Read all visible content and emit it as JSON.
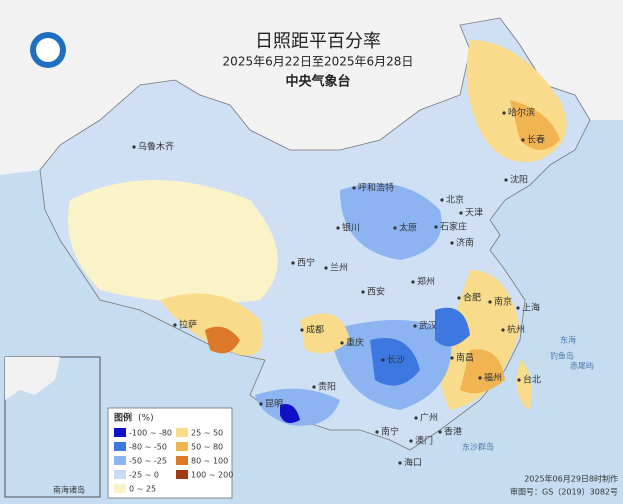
{
  "header": {
    "title": "日照距平百分率",
    "date_range": "2025年6月22日至2025年6月28日",
    "agency": "中央气象台"
  },
  "cities": [
    "乌鲁木齐",
    "哈尔滨",
    "长春",
    "沈阳",
    "呼和浩特",
    "北京",
    "天津",
    "银川",
    "太原",
    "石家庄",
    "济南",
    "西宁",
    "兰州",
    "郑州",
    "西安",
    "合肥",
    "南京",
    "上海",
    "拉萨",
    "成都",
    "武汉",
    "杭州",
    "重庆",
    "长沙",
    "南昌",
    "福州",
    "台北",
    "贵阳",
    "昆明",
    "南宁",
    "广州",
    "香港",
    "澳门",
    "海口"
  ],
  "sea_labels": [
    "东海",
    "钓鱼岛",
    "赤尾屿",
    "东沙群岛"
  ],
  "legend": {
    "title": "图例",
    "unit": "(%)",
    "items": [
      {
        "label": "-100 ~ -80",
        "color": "#1010c8"
      },
      {
        "label": "-80 ~ -50",
        "color": "#3c78e0"
      },
      {
        "label": "-50 ~ -25",
        "color": "#8cb4f0"
      },
      {
        "label": "-25 ~ 0",
        "color": "#c8dcf8"
      },
      {
        "label": "0 ~ 25",
        "color": "#fbf3c8"
      },
      {
        "label": "25 ~ 50",
        "color": "#f8dc8c"
      },
      {
        "label": "50 ~ 80",
        "color": "#f0b450"
      },
      {
        "label": "80 ~ 100",
        "color": "#dc7828"
      },
      {
        "label": "100 ~ 200",
        "color": "#a03c14"
      }
    ]
  },
  "inset": {
    "label": "南海诸岛"
  },
  "footer": {
    "made": "2025年06月29日8时制作",
    "approval": "审图号：GS（2019）3082号"
  }
}
